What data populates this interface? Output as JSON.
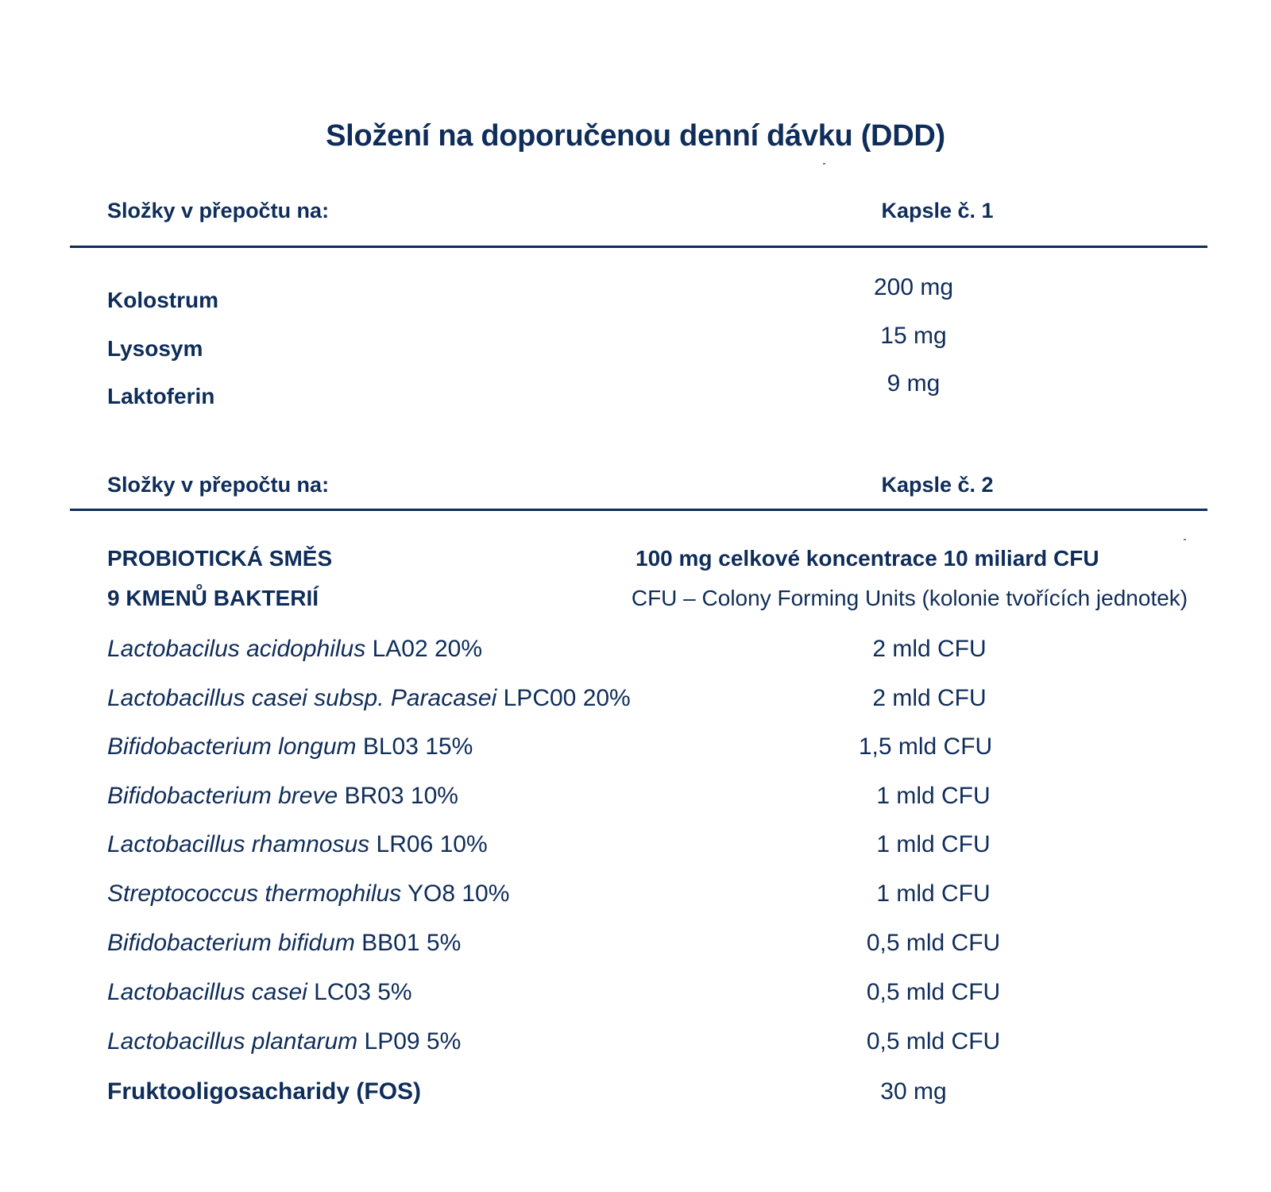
{
  "title": "Složení na doporučenou denní dávku (DDD)",
  "colors": {
    "text": "#0f2d5a",
    "background": "#ffffff"
  },
  "section1": {
    "header_left": "Složky v přepočtu na:",
    "header_right": "Kapsle č. 1",
    "rows": [
      {
        "name": "Kolostrum",
        "value": "200 mg"
      },
      {
        "name": "Lysosym",
        "value": "15 mg"
      },
      {
        "name": "Laktoferin",
        "value": "9 mg"
      }
    ]
  },
  "section2": {
    "header_left": "Složky v přepočtu na:",
    "header_right": "Kapsle č. 2",
    "mix_title_line1": "PROBIOTICKÁ SMĚS",
    "mix_title_line2": "9 KMENŮ BAKTERIÍ",
    "mix_value": "100 mg celkové koncentrace 10 miliard CFU",
    "mix_note": "CFU – Colony Forming Units (kolonie tvořících jednotek)",
    "strains": [
      {
        "species": "Lactobacilus acidophilus",
        "code": "LA02 20%",
        "value": "2 mld CFU"
      },
      {
        "species": "Lactobacillus casei subsp. Paracasei",
        "code": "LPC00 20%",
        "value": "2 mld CFU"
      },
      {
        "species": "Bifidobacterium longum",
        "code": "BL03 15%",
        "value": "1,5 mld CFU"
      },
      {
        "species": "Bifidobacterium breve",
        "code": "BR03 10%",
        "value": "1 mld CFU"
      },
      {
        "species": "Lactobacillus rhamnosus",
        "code": "LR06 10%",
        "value": "1 mld CFU"
      },
      {
        "species": "Streptococcus thermophilus",
        "code": "YO8 10%",
        "value": "1 mld CFU"
      },
      {
        "species": "Bifidobacterium bifidum",
        "code": "BB01 5%",
        "value": "0,5 mld CFU"
      },
      {
        "species": "Lactobacillus casei",
        "code": "LC03 5%",
        "value": "0,5 mld CFU"
      },
      {
        "species": "Lactobacillus plantarum",
        "code": "LP09 5%",
        "value": "0,5 mld CFU"
      }
    ],
    "fos": {
      "name": "Fruktooligosacharidy (FOS)",
      "value": "30 mg"
    }
  }
}
